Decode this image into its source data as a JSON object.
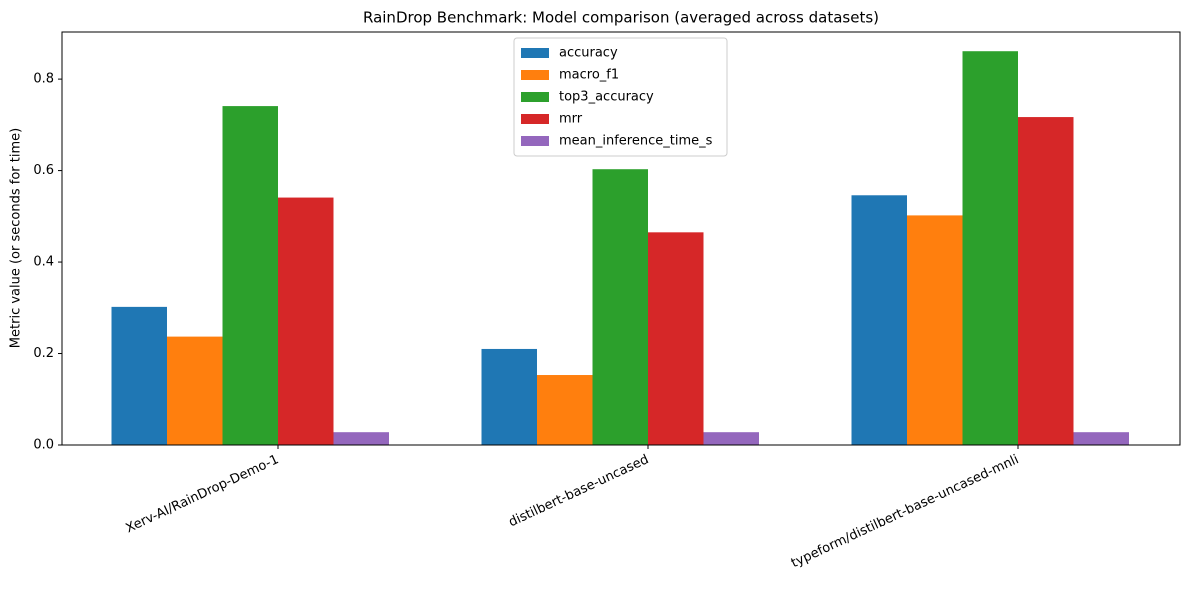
{
  "chart_data": {
    "type": "bar",
    "title": "RainDrop Benchmark: Model comparison (averaged across datasets)",
    "y_label": "Metric value (or seconds for time)",
    "categories": [
      "Xerv-AI/RainDrop-Demo-1",
      "distilbert-base-uncased",
      "typeform/distilbert-base-uncased-mnli"
    ],
    "series": [
      {
        "name": "accuracy",
        "color": "#1f77b4",
        "values": [
          0.302,
          0.21,
          0.546
        ]
      },
      {
        "name": "macro_f1",
        "color": "#ff7f0e",
        "values": [
          0.237,
          0.153,
          0.502
        ]
      },
      {
        "name": "top3_accuracy",
        "color": "#2ca02c",
        "values": [
          0.741,
          0.603,
          0.861
        ]
      },
      {
        "name": "mrr",
        "color": "#d62728",
        "values": [
          0.541,
          0.465,
          0.717
        ]
      },
      {
        "name": "mean_inference_time_s",
        "color": "#9467bd",
        "values": [
          0.028,
          0.028,
          0.028
        ]
      }
    ],
    "ylim": [
      0,
      0.903
    ],
    "yticks": [
      {
        "value": 0,
        "label": "0.0"
      },
      0.2,
      0.4,
      0.6,
      0.8
    ],
    "grid": false,
    "legend": "upper center"
  }
}
